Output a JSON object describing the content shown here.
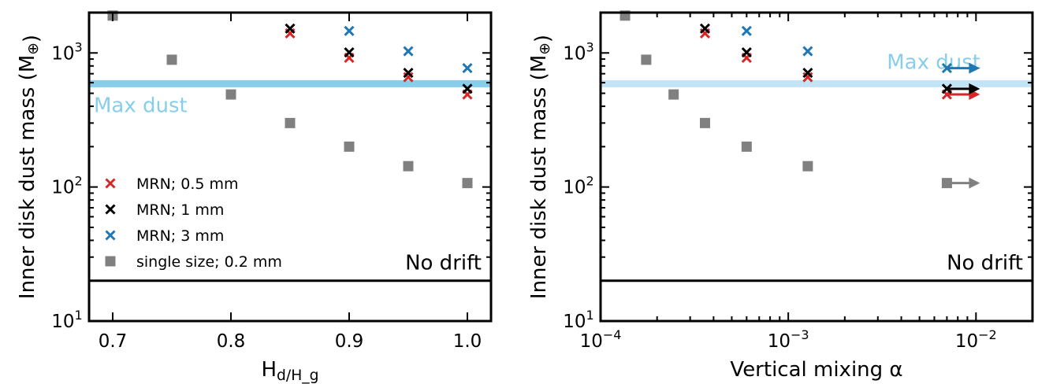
{
  "colors": {
    "red": "#d62728",
    "black": "#000000",
    "blue": "#1f77b4",
    "gray": "#808080",
    "max_dust_left": "#87ceeb",
    "max_dust_right": "#c2e4f4",
    "axis": "#000000"
  },
  "chart_data": [
    {
      "type": "scatter",
      "xlabel": "H_d/H_g",
      "ylabel": "Inner disk dust mass (M_⊕)",
      "xscale": "linear",
      "yscale": "log",
      "xlim": [
        0.68,
        1.02
      ],
      "ylim": [
        10,
        2000
      ],
      "xticks": [
        {
          "value": 0.7,
          "label": "0.7"
        },
        {
          "value": 0.8,
          "label": "0.8"
        },
        {
          "value": 0.9,
          "label": "0.9"
        },
        {
          "value": 1.0,
          "label": "1.0"
        }
      ],
      "yticks": [
        {
          "value": 10,
          "base": "10",
          "exp": "1"
        },
        {
          "value": 100,
          "base": "10",
          "exp": "2"
        },
        {
          "value": 1000,
          "base": "10",
          "exp": "3"
        }
      ],
      "series": [
        {
          "name": "MRN; 0.5 mm",
          "marker": "x",
          "color": "red",
          "x": [
            0.85,
            0.9,
            0.95,
            1.0
          ],
          "y": [
            1400,
            920,
            660,
            490
          ]
        },
        {
          "name": "MRN; 1 mm",
          "marker": "x",
          "color": "black",
          "x": [
            0.85,
            0.9,
            0.95,
            1.0
          ],
          "y": [
            1520,
            1010,
            710,
            540
          ]
        },
        {
          "name": "MRN; 3 mm",
          "marker": "x",
          "color": "blue",
          "x": [
            0.9,
            0.95,
            1.0
          ],
          "y": [
            1460,
            1030,
            770
          ]
        },
        {
          "name": "single size; 0.2 mm",
          "marker": "square",
          "color": "gray",
          "x": [
            0.7,
            0.75,
            0.8,
            0.85,
            0.9,
            0.95,
            1.0
          ],
          "y": [
            1900,
            890,
            490,
            300,
            200,
            143,
            107
          ]
        }
      ],
      "hlines": [
        {
          "y": 590,
          "label": "Max dust",
          "color": "max_dust_left",
          "label_pos": "below-left"
        },
        {
          "y": 20,
          "label": "No drift",
          "color": "black",
          "label_pos": "above-right"
        }
      ],
      "legend": {
        "placement": "lower-left"
      },
      "grid": false
    },
    {
      "type": "scatter",
      "xlabel": "Vertical mixing α",
      "ylabel": "Inner disk dust mass (M_⊕)",
      "xscale": "log",
      "yscale": "log",
      "xlim": [
        0.0001,
        0.02
      ],
      "ylim": [
        10,
        2000
      ],
      "xticks": [
        {
          "value": 0.0001,
          "base": "10",
          "exp": "−4"
        },
        {
          "value": 0.001,
          "base": "10",
          "exp": "−3"
        },
        {
          "value": 0.01,
          "base": "10",
          "exp": "−2"
        }
      ],
      "yticks": [
        {
          "value": 10,
          "base": "10",
          "exp": "1"
        },
        {
          "value": 100,
          "base": "10",
          "exp": "2"
        },
        {
          "value": 1000,
          "base": "10",
          "exp": "3"
        }
      ],
      "series": [
        {
          "name": "MRN; 0.5 mm",
          "marker": "x",
          "color": "red",
          "x": [
            0.00036,
            0.0006,
            0.00127
          ],
          "y": [
            1400,
            920,
            660
          ],
          "limit": {
            "x": 0.007,
            "y": 490,
            "direction": "right"
          }
        },
        {
          "name": "MRN; 1 mm",
          "marker": "x",
          "color": "black",
          "x": [
            0.00036,
            0.0006,
            0.00127
          ],
          "y": [
            1520,
            1010,
            710
          ],
          "limit": {
            "x": 0.007,
            "y": 540,
            "direction": "right"
          }
        },
        {
          "name": "MRN; 3 mm",
          "marker": "x",
          "color": "blue",
          "x": [
            0.0006,
            0.00127
          ],
          "y": [
            1460,
            1030
          ],
          "limit": {
            "x": 0.007,
            "y": 770,
            "direction": "right"
          }
        },
        {
          "name": "single size; 0.2 mm",
          "marker": "square",
          "color": "gray",
          "x": [
            0.000135,
            0.000175,
            0.000245,
            0.00036,
            0.0006,
            0.00127
          ],
          "y": [
            1900,
            890,
            490,
            300,
            200,
            143
          ],
          "limit": {
            "x": 0.007,
            "y": 107,
            "direction": "right"
          }
        }
      ],
      "hlines": [
        {
          "y": 590,
          "label": "Max dust",
          "color": "max_dust_right",
          "label_pos": "above-right"
        },
        {
          "y": 20,
          "label": "No drift",
          "color": "black",
          "label_pos": "above-right"
        }
      ],
      "grid": false
    }
  ]
}
